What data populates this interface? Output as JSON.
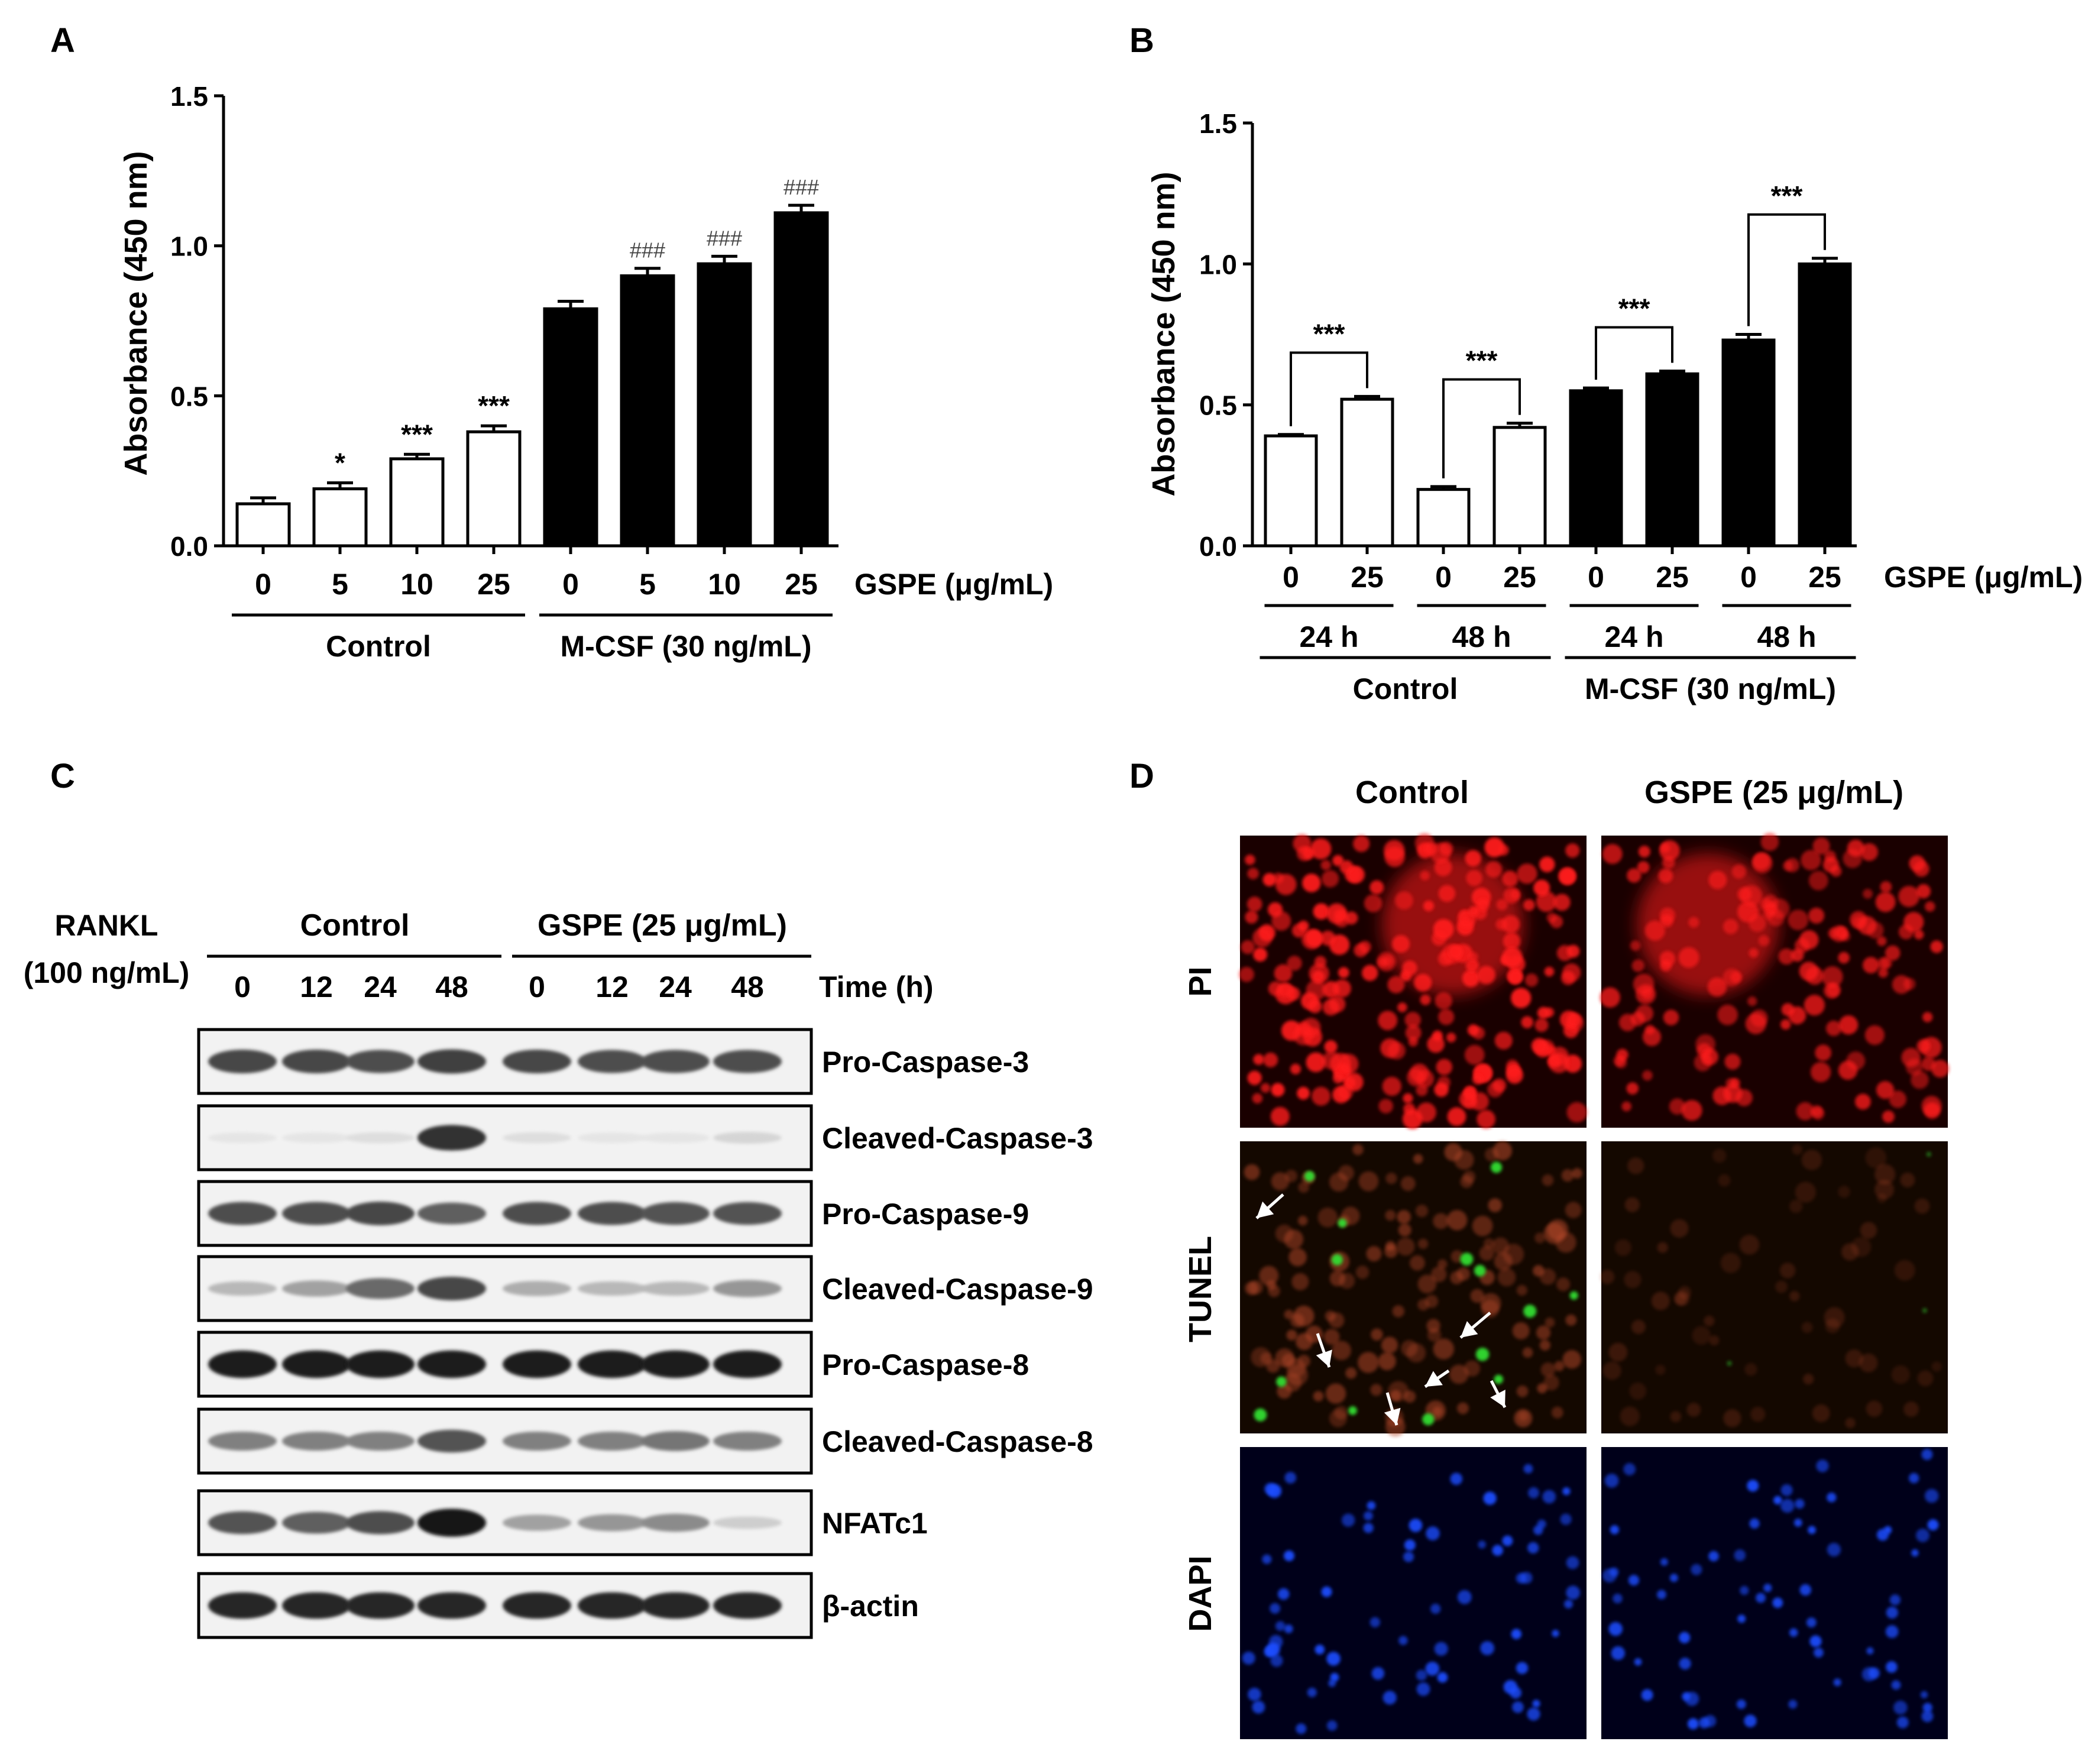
{
  "panel_labels": {
    "a": "A",
    "b": "B",
    "c": "C",
    "d": "D"
  },
  "chart_data": [
    {
      "type": "bar",
      "panel": "A",
      "ylabel": "Absorbance (450 nm)",
      "ylim": [
        0,
        1.5
      ],
      "yticks": [
        "0.0",
        "0.5",
        "1.0",
        "1.5"
      ],
      "categories": [
        "0",
        "5",
        "10",
        "25",
        "0",
        "5",
        "10",
        "25"
      ],
      "values": [
        0.14,
        0.19,
        0.29,
        0.38,
        0.79,
        0.9,
        0.94,
        1.11
      ],
      "errors": [
        0.02,
        0.02,
        0.015,
        0.02,
        0.025,
        0.025,
        0.025,
        0.025
      ],
      "fills": [
        "white",
        "white",
        "white",
        "white",
        "black",
        "black",
        "black",
        "black"
      ],
      "annotations": [
        "",
        "*",
        "***",
        "***",
        "",
        "###",
        "###",
        "###"
      ],
      "x_variable": "GSPE (μg/mL)",
      "groups": [
        {
          "label": "Control",
          "from": 0,
          "to": 3
        },
        {
          "label": "M-CSF (30 ng/mL)",
          "from": 4,
          "to": 7
        }
      ]
    },
    {
      "type": "bar",
      "panel": "B",
      "ylabel": "Absorbance (450 nm)",
      "ylim": [
        0,
        1.5
      ],
      "yticks": [
        "0.0",
        "0.5",
        "1.0",
        "1.5"
      ],
      "categories": [
        "0",
        "25",
        "0",
        "25",
        "0",
        "25",
        "0",
        "25"
      ],
      "values": [
        0.39,
        0.52,
        0.2,
        0.42,
        0.55,
        0.61,
        0.73,
        1.0
      ],
      "errors": [
        0.005,
        0.01,
        0.01,
        0.015,
        0.01,
        0.01,
        0.02,
        0.02
      ],
      "fills": [
        "white",
        "white",
        "white",
        "white",
        "black",
        "black",
        "black",
        "black"
      ],
      "x_variable": "GSPE (μg/mL)",
      "brackets": [
        {
          "from": 0,
          "to": 1,
          "label": "***"
        },
        {
          "from": 2,
          "to": 3,
          "label": "***"
        },
        {
          "from": 4,
          "to": 5,
          "label": "***"
        },
        {
          "from": 6,
          "to": 7,
          "label": "***"
        }
      ],
      "time_groups": [
        {
          "label": "24 h",
          "from": 0,
          "to": 1
        },
        {
          "label": "48 h",
          "from": 2,
          "to": 3
        },
        {
          "label": "24 h",
          "from": 4,
          "to": 5
        },
        {
          "label": "48 h",
          "from": 6,
          "to": 7
        }
      ],
      "groups": [
        {
          "label": "Control",
          "from": 0,
          "to": 3
        },
        {
          "label": "M-CSF (30 ng/mL)",
          "from": 4,
          "to": 7
        }
      ]
    }
  ],
  "panel_c": {
    "rankl_label": "RANKL",
    "rankl_dose": "(100 ng/mL)",
    "group_control": "Control",
    "group_gspe": "GSPE (25 μg/mL)",
    "lanes": [
      "0",
      "12",
      "24",
      "48",
      "0",
      "12",
      "24",
      "48"
    ],
    "time_label": "Time (h)",
    "blots": [
      {
        "label": "Pro-Caspase-3",
        "intensity": [
          0.75,
          0.75,
          0.72,
          0.78,
          0.75,
          0.72,
          0.72,
          0.72
        ]
      },
      {
        "label": "Cleaved-Caspase-3",
        "intensity": [
          0.05,
          0.05,
          0.08,
          0.85,
          0.08,
          0.05,
          0.05,
          0.12
        ]
      },
      {
        "label": "Pro-Caspase-9",
        "intensity": [
          0.72,
          0.72,
          0.75,
          0.65,
          0.72,
          0.72,
          0.7,
          0.7
        ]
      },
      {
        "label": "Cleaved-Caspase-9",
        "intensity": [
          0.25,
          0.35,
          0.6,
          0.75,
          0.3,
          0.25,
          0.25,
          0.4
        ]
      },
      {
        "label": "Pro-Caspase-8",
        "intensity": [
          0.95,
          0.95,
          0.95,
          0.95,
          0.95,
          0.95,
          0.95,
          0.95
        ]
      },
      {
        "label": "Cleaved-Caspase-8",
        "intensity": [
          0.5,
          0.5,
          0.5,
          0.7,
          0.5,
          0.5,
          0.55,
          0.5
        ]
      },
      {
        "label": "NFATc1",
        "intensity": [
          0.7,
          0.65,
          0.72,
          0.98,
          0.35,
          0.4,
          0.45,
          0.15
        ]
      },
      {
        "label": "β-actin",
        "intensity": [
          0.9,
          0.9,
          0.9,
          0.9,
          0.9,
          0.9,
          0.9,
          0.9
        ]
      }
    ]
  },
  "panel_d": {
    "columns": [
      "Control",
      "GSPE (25 μg/mL)"
    ],
    "rows": [
      "PI",
      "TUNEL",
      "DAPI"
    ],
    "stain_colors": {
      "PI": "#ff1a1a",
      "TUNEL": "#33dd33",
      "DAPI": "#1a4dff"
    }
  }
}
